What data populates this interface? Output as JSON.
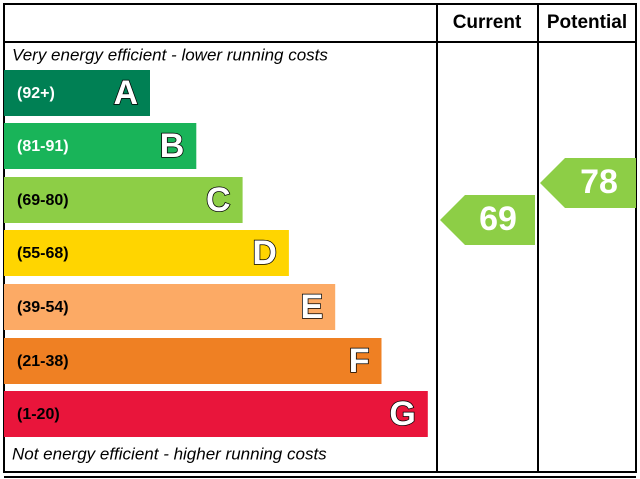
{
  "header": {
    "current": "Current",
    "potential": "Potential"
  },
  "top_note": "Very energy efficient - lower running costs",
  "bottom_note": "Not energy efficient - higher running costs",
  "bands": [
    {
      "range": "(92+)",
      "letter": "A",
      "color": "#008054",
      "text_color": "#ffffff"
    },
    {
      "range": "(81-91)",
      "letter": "B",
      "color": "#19b459",
      "text_color": "#ffffff"
    },
    {
      "range": "(69-80)",
      "letter": "C",
      "color": "#8dce46",
      "text_color": "#000000"
    },
    {
      "range": "(55-68)",
      "letter": "D",
      "color": "#ffd500",
      "text_color": "#000000"
    },
    {
      "range": "(39-54)",
      "letter": "E",
      "color": "#fcaa65",
      "text_color": "#000000"
    },
    {
      "range": "(21-38)",
      "letter": "F",
      "color": "#ef8023",
      "text_color": "#000000"
    },
    {
      "range": "(1-20)",
      "letter": "G",
      "color": "#e9153b",
      "text_color": "#000000"
    }
  ],
  "current": {
    "value": 69,
    "color": "#8dce46"
  },
  "potential": {
    "value": 78,
    "color": "#8dce46"
  }
}
